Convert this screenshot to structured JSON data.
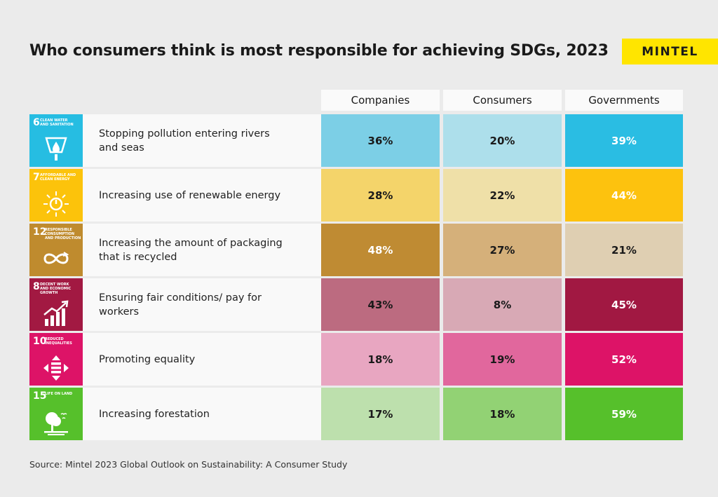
{
  "title": "Who consumers think is most responsible for achieving SDGs, 2023",
  "brand": "MINTEL",
  "source": "Source: Mintel 2023 Global Outlook on Sustainability: A Consumer Study",
  "chart_data": {
    "type": "table",
    "title": "Who consumers think is most responsible for achieving SDGs, 2023",
    "columns": [
      "Companies",
      "Consumers",
      "Governments"
    ],
    "rows": [
      {
        "goal_number": "6",
        "goal_name": "Clean water and sanitation",
        "goal_icon": "water-drop-icon",
        "goal_color": "#26bde2",
        "label": "Stopping pollution entering rivers and seas",
        "values": [
          "36%",
          "20%",
          "39%"
        ],
        "cell_colors": [
          "#7ccfe6",
          "#addfeb",
          "#2abde3"
        ],
        "text_colors": [
          "#1a1a1a",
          "#1a1a1a",
          "#ffffff"
        ]
      },
      {
        "goal_number": "7",
        "goal_name": "Affordable and clean energy",
        "goal_icon": "sun-power-icon",
        "goal_color": "#fcc30b",
        "label": "Increasing use of renewable energy",
        "values": [
          "28%",
          "22%",
          "44%"
        ],
        "cell_colors": [
          "#f4d46a",
          "#efe0a8",
          "#fdc20e"
        ],
        "text_colors": [
          "#1a1a1a",
          "#1a1a1a",
          "#ffffff"
        ]
      },
      {
        "goal_number": "12",
        "goal_name": "Responsible consumption and production",
        "goal_icon": "infinity-icon",
        "goal_color": "#bf8b2e",
        "label": "Increasing the amount of packaging that is recycled",
        "values": [
          "48%",
          "27%",
          "21%"
        ],
        "cell_colors": [
          "#bf8b33",
          "#d5b07a",
          "#dfcfb2"
        ],
        "text_colors": [
          "#ffffff",
          "#1a1a1a",
          "#1a1a1a"
        ]
      },
      {
        "goal_number": "8",
        "goal_name": "Decent work and economic growth",
        "goal_icon": "growth-chart-icon",
        "goal_color": "#a21942",
        "label": "Ensuring fair conditions/ pay for workers",
        "values": [
          "43%",
          "8%",
          "45%"
        ],
        "cell_colors": [
          "#bc6b80",
          "#d8a9b5",
          "#a11842"
        ],
        "text_colors": [
          "#1a1a1a",
          "#1a1a1a",
          "#ffffff"
        ]
      },
      {
        "goal_number": "10",
        "goal_name": "Reduced inequalities",
        "goal_icon": "equality-icon",
        "goal_color": "#dd1367",
        "label": "Promoting equality",
        "values": [
          "18%",
          "19%",
          "52%"
        ],
        "cell_colors": [
          "#e8a6c1",
          "#e1679d",
          "#dd1367"
        ],
        "text_colors": [
          "#1a1a1a",
          "#1a1a1a",
          "#ffffff"
        ]
      },
      {
        "goal_number": "15",
        "goal_name": "Life on land",
        "goal_icon": "tree-icon",
        "goal_color": "#56c02b",
        "label": "Increasing forestation",
        "values": [
          "17%",
          "18%",
          "59%"
        ],
        "cell_colors": [
          "#bde0ad",
          "#92d274",
          "#56c02b"
        ],
        "text_colors": [
          "#1a1a1a",
          "#1a1a1a",
          "#ffffff"
        ]
      }
    ]
  }
}
